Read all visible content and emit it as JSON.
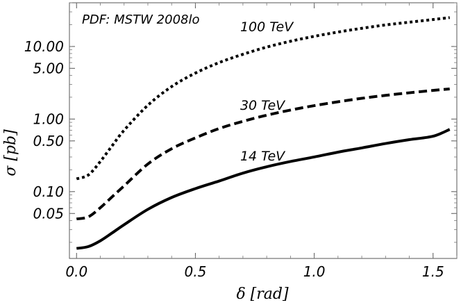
{
  "chart_data": {
    "type": "line",
    "title": "",
    "annotation": "PDF: MSTW 2008lo",
    "xlabel": "δ [rad]",
    "ylabel": "σ [pb]",
    "xscale": "linear",
    "yscale": "log",
    "xlim": [
      -0.03,
      1.6
    ],
    "ylim": [
      0.012,
      40
    ],
    "x_ticks": [
      0.0,
      0.5,
      1.0,
      1.5
    ],
    "x_tick_labels": [
      "0.0",
      "0.5",
      "1.0",
      "1.5"
    ],
    "y_ticks": [
      0.05,
      0.1,
      0.5,
      1.0,
      5.0,
      10.0
    ],
    "y_tick_labels": [
      "0.05",
      "0.10",
      "0.50",
      "1.00",
      "5.00",
      "10.00"
    ],
    "series": [
      {
        "name": "100 TeV",
        "style": "dotted",
        "x": [
          0.0,
          0.05,
          0.1,
          0.15,
          0.2,
          0.3,
          0.4,
          0.5,
          0.6,
          0.7,
          0.8,
          0.9,
          1.0,
          1.1,
          1.2,
          1.3,
          1.4,
          1.5,
          1.57
        ],
        "y": [
          0.15,
          0.17,
          0.26,
          0.43,
          0.7,
          1.55,
          2.8,
          4.3,
          6.0,
          7.8,
          9.8,
          11.8,
          13.8,
          15.8,
          17.8,
          19.8,
          21.6,
          23.5,
          25.0
        ]
      },
      {
        "name": "30 TeV",
        "style": "dashed",
        "x": [
          0.0,
          0.05,
          0.1,
          0.15,
          0.2,
          0.3,
          0.4,
          0.5,
          0.6,
          0.7,
          0.8,
          0.9,
          1.0,
          1.1,
          1.2,
          1.3,
          1.4,
          1.5,
          1.57
        ],
        "y": [
          0.042,
          0.045,
          0.06,
          0.085,
          0.12,
          0.24,
          0.39,
          0.55,
          0.74,
          0.93,
          1.13,
          1.33,
          1.53,
          1.73,
          1.93,
          2.12,
          2.3,
          2.48,
          2.6
        ]
      },
      {
        "name": "14 TeV",
        "style": "solid",
        "x": [
          0.0,
          0.05,
          0.1,
          0.15,
          0.2,
          0.3,
          0.4,
          0.5,
          0.6,
          0.7,
          0.8,
          0.9,
          1.0,
          1.1,
          1.2,
          1.3,
          1.4,
          1.5,
          1.57
        ],
        "y": [
          0.0165,
          0.0175,
          0.021,
          0.027,
          0.035,
          0.057,
          0.083,
          0.11,
          0.14,
          0.18,
          0.22,
          0.26,
          0.3,
          0.35,
          0.4,
          0.46,
          0.52,
          0.58,
          0.72
        ]
      }
    ],
    "series_labels": [
      {
        "text": "100 TeV",
        "x": 0.82,
        "y": 18.0
      },
      {
        "text": "30 TeV",
        "x": 0.82,
        "y": 1.5
      },
      {
        "text": "14 TeV",
        "x": 0.82,
        "y": 0.3
      }
    ]
  }
}
